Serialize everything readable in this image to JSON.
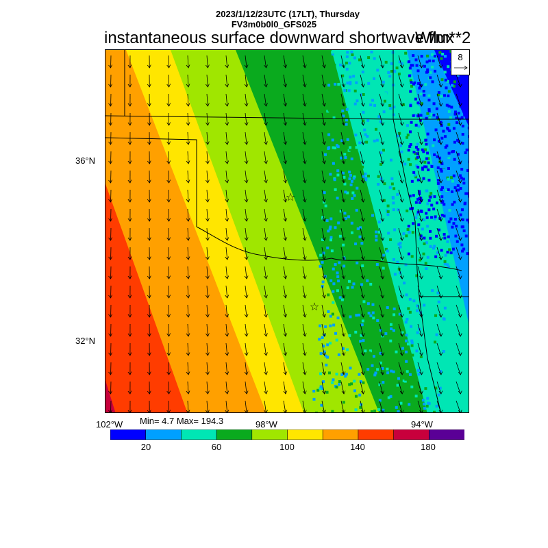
{
  "header": {
    "datetime_line": "2023/1/12/23UTC (17LT), Thursday",
    "model_line": "FV3m0b0l0_GFS025"
  },
  "title": "instantaneous surface downward shortwave flux",
  "units": "W/m**2",
  "reference_vector": {
    "label": "8"
  },
  "axes": {
    "lat_labels": [
      "36°N",
      "32°N"
    ],
    "lon_labels": [
      "102°W",
      "98°W",
      "94°W"
    ]
  },
  "stats": {
    "text": "Min= 4.7 Max= 194.3",
    "min": 4.7,
    "max": 194.3
  },
  "colorbar": {
    "colors": [
      "#0000ff",
      "#00a0ff",
      "#00e6b4",
      "#0aaa1e",
      "#a0e600",
      "#ffe600",
      "#ffa000",
      "#ff3c00",
      "#c8003c",
      "#5a0096"
    ],
    "labels": [
      "20",
      "60",
      "100",
      "140",
      "180"
    ],
    "levels": [
      0,
      20,
      40,
      60,
      80,
      100,
      120,
      140,
      160,
      180,
      200
    ]
  },
  "markers": {
    "symbol": "☆"
  },
  "map_extent": {
    "lon_min": -102,
    "lon_max": -93.5,
    "lat_min": 30.2,
    "lat_max": 38.2
  },
  "field_description": "Shortwave flux decreasing from southwest (~190) to northeast (~5); winds mostly from north",
  "bands_colors_order": [
    "#5a0096",
    "#c8003c",
    "#ff3c00",
    "#ffa000",
    "#ffe600",
    "#a0e600",
    "#0aaa1e",
    "#00e6b4",
    "#00a0ff",
    "#0000ff"
  ]
}
